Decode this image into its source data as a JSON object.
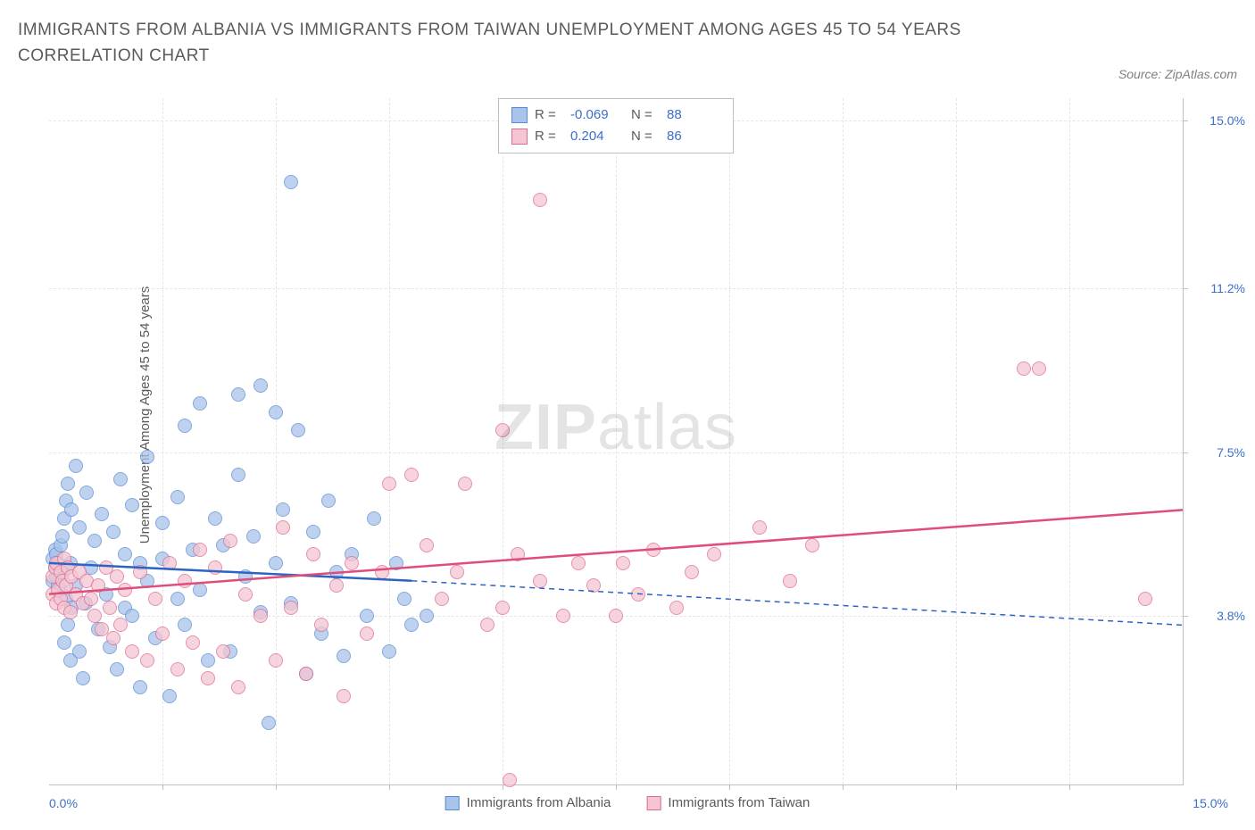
{
  "title": "IMMIGRANTS FROM ALBANIA VS IMMIGRANTS FROM TAIWAN UNEMPLOYMENT AMONG AGES 45 TO 54 YEARS CORRELATION CHART",
  "source": "Source: ZipAtlas.com",
  "y_axis_label": "Unemployment Among Ages 45 to 54 years",
  "watermark": {
    "zip": "ZIP",
    "atlas": "atlas"
  },
  "colors": {
    "blue_fill": "#a9c4ea",
    "blue_stroke": "#5b8bd4",
    "pink_fill": "#f4c6d2",
    "pink_stroke": "#e06b8f",
    "trend_blue": "#2e63c2",
    "trend_pink": "#e04d7a",
    "tick_text": "#3b6fc9",
    "grid": "#e5e5e5"
  },
  "xlim": [
    0,
    15
  ],
  "ylim": [
    0,
    15.5
  ],
  "y_ticks": [
    {
      "v": 3.8,
      "label": "3.8%"
    },
    {
      "v": 7.5,
      "label": "7.5%"
    },
    {
      "v": 11.2,
      "label": "11.2%"
    },
    {
      "v": 15.0,
      "label": "15.0%"
    }
  ],
  "x_ticks_minor": [
    1.5,
    3.0,
    4.5,
    6.0,
    7.5,
    9.0,
    10.5,
    12.0,
    13.5
  ],
  "x_min_label": "0.0%",
  "x_max_label": "15.0%",
  "series": [
    {
      "name": "Immigrants from Albania",
      "color_fill": "#a9c4ea",
      "color_stroke": "#5b8bd4",
      "R": "-0.069",
      "N": "88",
      "trend": {
        "x1": 0,
        "y1": 5.0,
        "x2": 4.8,
        "y2": 4.6,
        "dash_x2": 15,
        "dash_y2": 3.6
      },
      "points": [
        [
          0.05,
          4.6
        ],
        [
          0.05,
          5.1
        ],
        [
          0.08,
          5.3
        ],
        [
          0.08,
          4.9
        ],
        [
          0.1,
          4.7
        ],
        [
          0.1,
          5.2
        ],
        [
          0.12,
          4.5
        ],
        [
          0.12,
          5.0
        ],
        [
          0.15,
          4.4
        ],
        [
          0.15,
          5.4
        ],
        [
          0.18,
          4.8
        ],
        [
          0.18,
          5.6
        ],
        [
          0.2,
          3.2
        ],
        [
          0.2,
          6.0
        ],
        [
          0.22,
          4.2
        ],
        [
          0.22,
          6.4
        ],
        [
          0.25,
          3.6
        ],
        [
          0.25,
          6.8
        ],
        [
          0.28,
          2.8
        ],
        [
          0.28,
          5.0
        ],
        [
          0.3,
          4.0
        ],
        [
          0.3,
          6.2
        ],
        [
          0.35,
          4.5
        ],
        [
          0.35,
          7.2
        ],
        [
          0.4,
          3.0
        ],
        [
          0.4,
          5.8
        ],
        [
          0.45,
          2.4
        ],
        [
          0.48,
          4.1
        ],
        [
          0.5,
          6.6
        ],
        [
          0.55,
          4.9
        ],
        [
          0.6,
          5.5
        ],
        [
          0.65,
          3.5
        ],
        [
          0.7,
          6.1
        ],
        [
          0.75,
          4.3
        ],
        [
          0.8,
          3.1
        ],
        [
          0.85,
          5.7
        ],
        [
          0.9,
          2.6
        ],
        [
          0.95,
          6.9
        ],
        [
          1.0,
          4.0
        ],
        [
          1.0,
          5.2
        ],
        [
          1.1,
          3.8
        ],
        [
          1.1,
          6.3
        ],
        [
          1.2,
          2.2
        ],
        [
          1.2,
          5.0
        ],
        [
          1.3,
          4.6
        ],
        [
          1.3,
          7.4
        ],
        [
          1.4,
          3.3
        ],
        [
          1.5,
          5.9
        ],
        [
          1.5,
          5.1
        ],
        [
          1.6,
          2.0
        ],
        [
          1.7,
          6.5
        ],
        [
          1.7,
          4.2
        ],
        [
          1.8,
          8.1
        ],
        [
          1.8,
          3.6
        ],
        [
          1.9,
          5.3
        ],
        [
          2.0,
          4.4
        ],
        [
          2.0,
          8.6
        ],
        [
          2.1,
          2.8
        ],
        [
          2.2,
          6.0
        ],
        [
          2.3,
          5.4
        ],
        [
          2.4,
          3.0
        ],
        [
          2.5,
          7.0
        ],
        [
          2.5,
          8.8
        ],
        [
          2.6,
          4.7
        ],
        [
          2.7,
          5.6
        ],
        [
          2.8,
          9.0
        ],
        [
          2.8,
          3.9
        ],
        [
          2.9,
          1.4
        ],
        [
          3.0,
          8.4
        ],
        [
          3.0,
          5.0
        ],
        [
          3.1,
          6.2
        ],
        [
          3.2,
          4.1
        ],
        [
          3.2,
          13.6
        ],
        [
          3.3,
          8.0
        ],
        [
          3.4,
          2.5
        ],
        [
          3.5,
          5.7
        ],
        [
          3.6,
          3.4
        ],
        [
          3.7,
          6.4
        ],
        [
          3.8,
          4.8
        ],
        [
          3.9,
          2.9
        ],
        [
          4.0,
          5.2
        ],
        [
          4.2,
          3.8
        ],
        [
          4.3,
          6.0
        ],
        [
          4.5,
          3.0
        ],
        [
          4.6,
          5.0
        ],
        [
          4.7,
          4.2
        ],
        [
          4.8,
          3.6
        ],
        [
          5.0,
          3.8
        ]
      ]
    },
    {
      "name": "Immigrants from Taiwan",
      "color_fill": "#f4c6d2",
      "color_stroke": "#e06b8f",
      "R": "0.204",
      "N": "86",
      "trend": {
        "x1": 0,
        "y1": 4.3,
        "x2": 15,
        "y2": 6.2
      },
      "points": [
        [
          0.05,
          4.3
        ],
        [
          0.05,
          4.7
        ],
        [
          0.08,
          4.9
        ],
        [
          0.1,
          4.1
        ],
        [
          0.1,
          5.0
        ],
        [
          0.12,
          4.4
        ],
        [
          0.15,
          4.8
        ],
        [
          0.15,
          4.2
        ],
        [
          0.18,
          4.6
        ],
        [
          0.2,
          4.0
        ],
        [
          0.2,
          5.1
        ],
        [
          0.22,
          4.5
        ],
        [
          0.25,
          4.9
        ],
        [
          0.28,
          3.9
        ],
        [
          0.3,
          4.7
        ],
        [
          0.35,
          4.3
        ],
        [
          0.4,
          4.8
        ],
        [
          0.45,
          4.1
        ],
        [
          0.5,
          4.6
        ],
        [
          0.55,
          4.2
        ],
        [
          0.6,
          3.8
        ],
        [
          0.65,
          4.5
        ],
        [
          0.7,
          3.5
        ],
        [
          0.75,
          4.9
        ],
        [
          0.8,
          4.0
        ],
        [
          0.85,
          3.3
        ],
        [
          0.9,
          4.7
        ],
        [
          0.95,
          3.6
        ],
        [
          1.0,
          4.4
        ],
        [
          1.1,
          3.0
        ],
        [
          1.2,
          4.8
        ],
        [
          1.3,
          2.8
        ],
        [
          1.4,
          4.2
        ],
        [
          1.5,
          3.4
        ],
        [
          1.6,
          5.0
        ],
        [
          1.7,
          2.6
        ],
        [
          1.8,
          4.6
        ],
        [
          1.9,
          3.2
        ],
        [
          2.0,
          5.3
        ],
        [
          2.1,
          2.4
        ],
        [
          2.2,
          4.9
        ],
        [
          2.3,
          3.0
        ],
        [
          2.4,
          5.5
        ],
        [
          2.5,
          2.2
        ],
        [
          2.6,
          4.3
        ],
        [
          2.8,
          3.8
        ],
        [
          3.0,
          2.8
        ],
        [
          3.1,
          5.8
        ],
        [
          3.2,
          4.0
        ],
        [
          3.4,
          2.5
        ],
        [
          3.5,
          5.2
        ],
        [
          3.6,
          3.6
        ],
        [
          3.8,
          4.5
        ],
        [
          3.9,
          2.0
        ],
        [
          4.0,
          5.0
        ],
        [
          4.2,
          3.4
        ],
        [
          4.4,
          4.8
        ],
        [
          4.5,
          6.8
        ],
        [
          4.8,
          7.0
        ],
        [
          5.0,
          5.4
        ],
        [
          5.2,
          4.2
        ],
        [
          5.4,
          4.8
        ],
        [
          5.5,
          6.8
        ],
        [
          5.8,
          3.6
        ],
        [
          6.0,
          4.0
        ],
        [
          6.0,
          8.0
        ],
        [
          6.1,
          0.1
        ],
        [
          6.2,
          5.2
        ],
        [
          6.5,
          13.2
        ],
        [
          6.5,
          4.6
        ],
        [
          6.8,
          3.8
        ],
        [
          7.0,
          5.0
        ],
        [
          7.2,
          4.5
        ],
        [
          7.5,
          3.8
        ],
        [
          7.6,
          5.0
        ],
        [
          7.8,
          4.3
        ],
        [
          8.0,
          5.3
        ],
        [
          8.3,
          4.0
        ],
        [
          8.5,
          4.8
        ],
        [
          8.8,
          5.2
        ],
        [
          9.4,
          5.8
        ],
        [
          9.8,
          4.6
        ],
        [
          10.1,
          5.4
        ],
        [
          12.9,
          9.4
        ],
        [
          13.1,
          9.4
        ],
        [
          14.5,
          4.2
        ]
      ]
    }
  ],
  "legend_bottom": [
    {
      "label": "Immigrants from Albania",
      "fill": "#a9c4ea",
      "stroke": "#5b8bd4"
    },
    {
      "label": "Immigrants from Taiwan",
      "fill": "#f4c6d2",
      "stroke": "#e06b8f"
    }
  ],
  "legend_top_labels": {
    "R": "R =",
    "N": "N ="
  }
}
